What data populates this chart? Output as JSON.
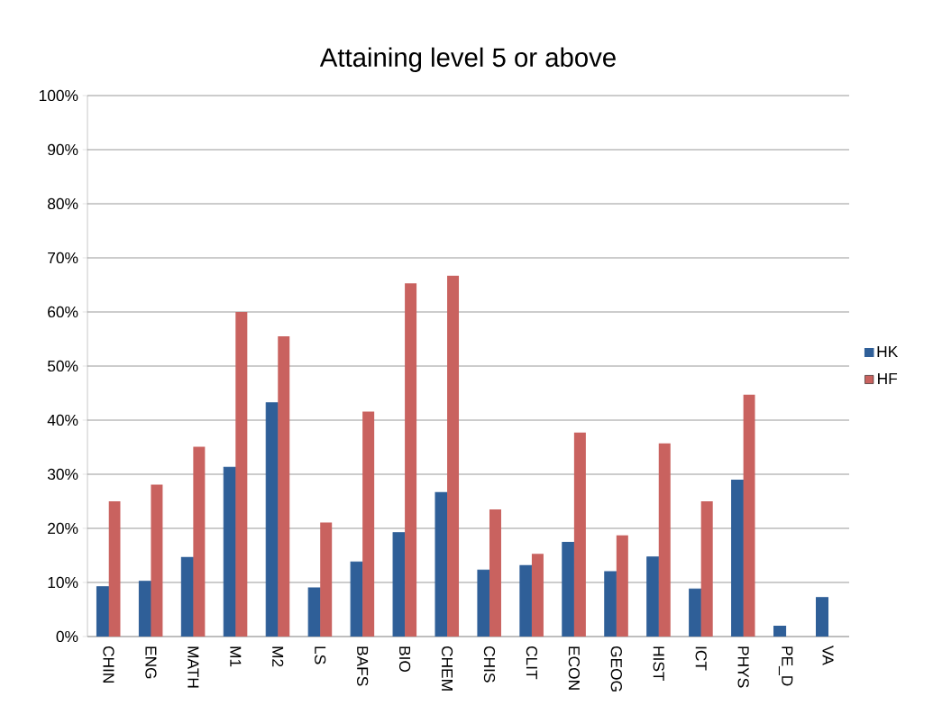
{
  "chart_data": {
    "type": "bar",
    "title": "Attaining level 5 or above",
    "categories": [
      "CHIN",
      "ENG",
      "MATH",
      "M1",
      "M2",
      "LS",
      "BAFS",
      "BIO",
      "CHEM",
      "CHIS",
      "CLIT",
      "ECON",
      "GEOG",
      "HIST",
      "ICT",
      "PHYS",
      "PE_D",
      "VA"
    ],
    "series": [
      {
        "name": "HK",
        "color": "#2f5f98",
        "values": [
          9.2,
          10.2,
          14.6,
          31.3,
          43.2,
          9.0,
          13.8,
          19.2,
          26.6,
          12.3,
          13.1,
          17.4,
          12.0,
          14.7,
          8.8,
          28.9,
          1.9,
          7.2
        ]
      },
      {
        "name": "HF",
        "color": "#c9625f",
        "values": [
          25.0,
          28.1,
          35.1,
          60.0,
          55.5,
          21.1,
          41.6,
          65.3,
          66.7,
          23.5,
          15.3,
          37.7,
          18.7,
          35.7,
          25.0,
          44.7,
          null,
          null
        ]
      }
    ],
    "ylim": [
      0,
      100
    ],
    "yticks": [
      {
        "value": 0,
        "label": "0%"
      },
      {
        "value": 10,
        "label": "10%"
      },
      {
        "value": 20,
        "label": "20%"
      },
      {
        "value": 30,
        "label": "30%"
      },
      {
        "value": 40,
        "label": "40%"
      },
      {
        "value": 50,
        "label": "50%"
      },
      {
        "value": 60,
        "label": "60%"
      },
      {
        "value": 70,
        "label": "70%"
      },
      {
        "value": 80,
        "label": "80%"
      },
      {
        "value": 90,
        "label": "90%"
      },
      {
        "value": 100,
        "label": "100%"
      }
    ],
    "grid": "y",
    "legend": "right"
  }
}
